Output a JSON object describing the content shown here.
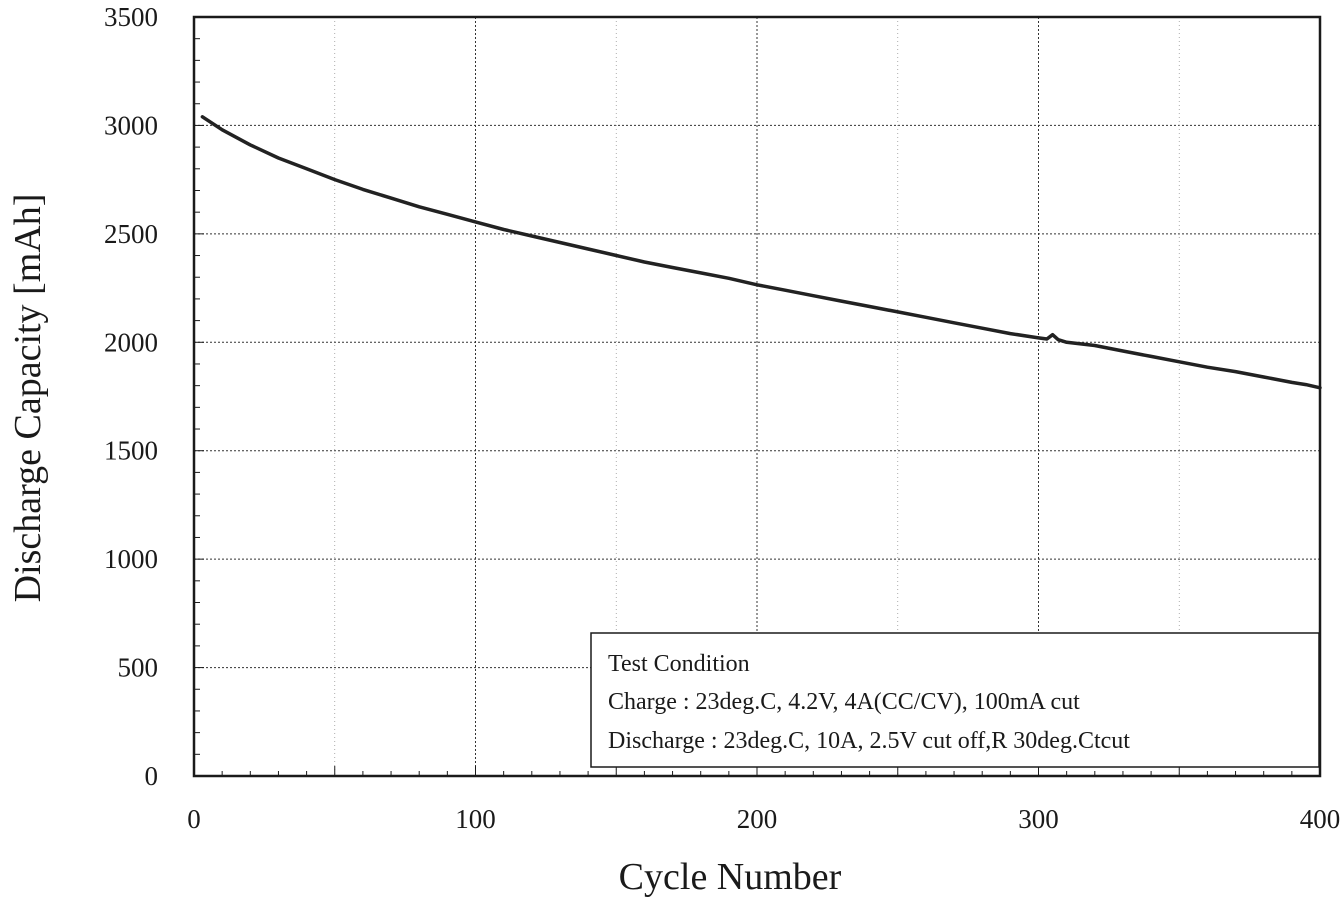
{
  "chart_data": {
    "type": "line",
    "title": "",
    "xlabel": "Cycle Number",
    "ylabel": "Discharge Capacity [mAh]",
    "xlim": [
      0,
      400
    ],
    "ylim": [
      0,
      3500
    ],
    "x_ticks": [
      "0",
      "100",
      "200",
      "300",
      "400"
    ],
    "y_ticks": [
      "0",
      "500",
      "1000",
      "1500",
      "2000",
      "2500",
      "3000",
      "3500"
    ],
    "grid": true,
    "series": [
      {
        "color": "#222222",
        "points": [
          [
            3,
            3040
          ],
          [
            10,
            2980
          ],
          [
            20,
            2910
          ],
          [
            30,
            2850
          ],
          [
            40,
            2800
          ],
          [
            50,
            2750
          ],
          [
            60,
            2705
          ],
          [
            70,
            2665
          ],
          [
            80,
            2625
          ],
          [
            90,
            2590
          ],
          [
            100,
            2555
          ],
          [
            110,
            2520
          ],
          [
            120,
            2490
          ],
          [
            130,
            2460
          ],
          [
            140,
            2430
          ],
          [
            150,
            2400
          ],
          [
            160,
            2370
          ],
          [
            170,
            2345
          ],
          [
            180,
            2320
          ],
          [
            190,
            2295
          ],
          [
            200,
            2265
          ],
          [
            210,
            2240
          ],
          [
            220,
            2215
          ],
          [
            230,
            2190
          ],
          [
            240,
            2165
          ],
          [
            250,
            2140
          ],
          [
            260,
            2115
          ],
          [
            270,
            2090
          ],
          [
            280,
            2065
          ],
          [
            290,
            2040
          ],
          [
            300,
            2020
          ],
          [
            303,
            2015
          ],
          [
            305,
            2035
          ],
          [
            307,
            2012
          ],
          [
            310,
            2000
          ],
          [
            320,
            1985
          ],
          [
            330,
            1960
          ],
          [
            340,
            1935
          ],
          [
            350,
            1910
          ],
          [
            360,
            1885
          ],
          [
            370,
            1865
          ],
          [
            380,
            1840
          ],
          [
            390,
            1815
          ],
          [
            395,
            1805
          ],
          [
            400,
            1790
          ]
        ]
      }
    ],
    "legend": {
      "position": "bottom-right",
      "lines": [
        "Test Condition",
        "Charge : 23deg.C, 4.2V, 4A(CC/CV), 100mA cut",
        "Discharge : 23deg.C, 10A, 2.5V cut off,R 30deg.Ctcut"
      ]
    }
  }
}
